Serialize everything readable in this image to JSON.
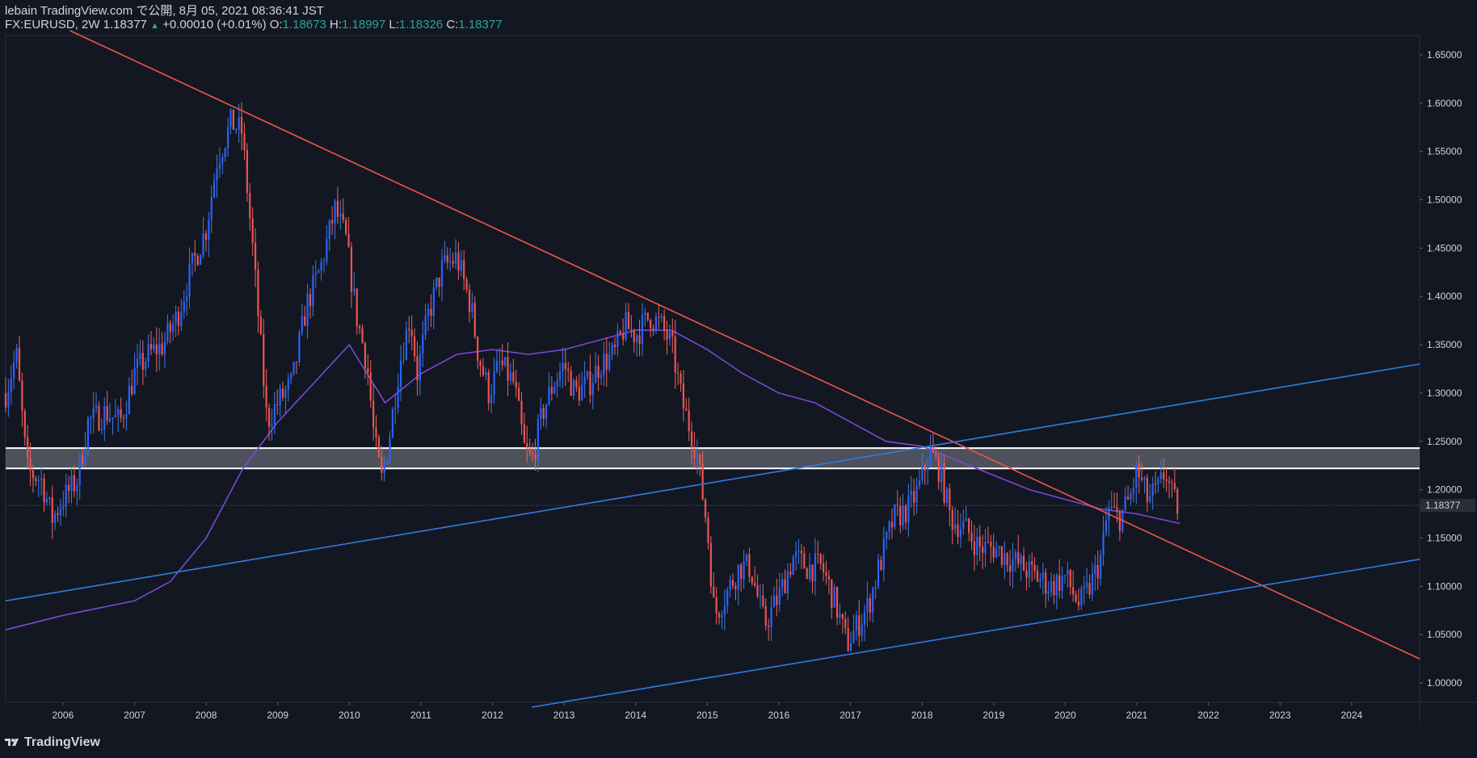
{
  "header": {
    "line1": "lebain TradingView.com で公開, 8月 05, 2021 08:36:41 JST",
    "symbol": "FX:EURUSD, 2W 1.18377",
    "change_arrow": "▲",
    "change": "+0.00010 (+0.01%)",
    "o_label": "O:",
    "o_value": "1.18673",
    "h_label": "H:",
    "h_value": "1.18997",
    "l_label": "L:",
    "l_value": "1.18326",
    "c_label": "C:",
    "c_value": "1.18377"
  },
  "brand": {
    "name": "TradingView",
    "icon": "tradingview-logo-icon"
  },
  "colors": {
    "background": "#131722",
    "up": "#2962ff",
    "down": "#ef5350",
    "upWick": "#3d7be0",
    "downWick": "#e8655f",
    "trend": "#f0554c",
    "channel": "#2f7ee0",
    "ma": "#7e46d6",
    "zone": "#ffffff"
  },
  "chart_data": {
    "type": "candlestick",
    "symbol": "FX:EURUSD",
    "interval": "2W",
    "last_price": 1.18377,
    "x_range": [
      2005.2,
      2024.95
    ],
    "ylim": [
      0.98,
      1.67
    ],
    "y_ticks": [
      "1.65000",
      "1.60000",
      "1.55000",
      "1.50000",
      "1.45000",
      "1.40000",
      "1.35000",
      "1.30000",
      "1.25000",
      "1.20000",
      "1.15000",
      "1.10000",
      "1.05000",
      "1.00000"
    ],
    "x_ticks": [
      "2006",
      "2007",
      "2008",
      "2009",
      "2010",
      "2011",
      "2012",
      "2013",
      "2014",
      "2015",
      "2016",
      "2017",
      "2018",
      "2019",
      "2020",
      "2021",
      "2022",
      "2023",
      "2024"
    ],
    "price_path": [
      [
        2005.2,
        1.3
      ],
      [
        2005.35,
        1.34
      ],
      [
        2005.5,
        1.22
      ],
      [
        2005.7,
        1.21
      ],
      [
        2005.85,
        1.17
      ],
      [
        2006.0,
        1.19
      ],
      [
        2006.2,
        1.21
      ],
      [
        2006.35,
        1.27
      ],
      [
        2006.6,
        1.28
      ],
      [
        2006.8,
        1.27
      ],
      [
        2007.0,
        1.32
      ],
      [
        2007.2,
        1.34
      ],
      [
        2007.4,
        1.35
      ],
      [
        2007.6,
        1.38
      ],
      [
        2007.8,
        1.43
      ],
      [
        2008.0,
        1.47
      ],
      [
        2008.15,
        1.54
      ],
      [
        2008.35,
        1.58
      ],
      [
        2008.5,
        1.57
      ],
      [
        2008.65,
        1.45
      ],
      [
        2008.85,
        1.27
      ],
      [
        2009.0,
        1.29
      ],
      [
        2009.2,
        1.31
      ],
      [
        2009.4,
        1.39
      ],
      [
        2009.6,
        1.43
      ],
      [
        2009.8,
        1.49
      ],
      [
        2009.95,
        1.46
      ],
      [
        2010.1,
        1.38
      ],
      [
        2010.25,
        1.33
      ],
      [
        2010.35,
        1.25
      ],
      [
        2010.45,
        1.21
      ],
      [
        2010.55,
        1.25
      ],
      [
        2010.7,
        1.33
      ],
      [
        2010.85,
        1.38
      ],
      [
        2010.95,
        1.32
      ],
      [
        2011.1,
        1.38
      ],
      [
        2011.3,
        1.43
      ],
      [
        2011.5,
        1.44
      ],
      [
        2011.7,
        1.39
      ],
      [
        2011.8,
        1.34
      ],
      [
        2011.95,
        1.3
      ],
      [
        2012.1,
        1.33
      ],
      [
        2012.3,
        1.31
      ],
      [
        2012.45,
        1.24
      ],
      [
        2012.55,
        1.23
      ],
      [
        2012.7,
        1.28
      ],
      [
        2012.85,
        1.31
      ],
      [
        2013.0,
        1.33
      ],
      [
        2013.15,
        1.3
      ],
      [
        2013.35,
        1.31
      ],
      [
        2013.5,
        1.33
      ],
      [
        2013.7,
        1.34
      ],
      [
        2013.85,
        1.37
      ],
      [
        2014.0,
        1.36
      ],
      [
        2014.2,
        1.38
      ],
      [
        2014.35,
        1.37
      ],
      [
        2014.5,
        1.35
      ],
      [
        2014.65,
        1.29
      ],
      [
        2014.85,
        1.24
      ],
      [
        2015.0,
        1.16
      ],
      [
        2015.1,
        1.07
      ],
      [
        2015.25,
        1.09
      ],
      [
        2015.45,
        1.12
      ],
      [
        2015.6,
        1.12
      ],
      [
        2015.8,
        1.06
      ],
      [
        2016.0,
        1.09
      ],
      [
        2016.2,
        1.13
      ],
      [
        2016.4,
        1.12
      ],
      [
        2016.6,
        1.12
      ],
      [
        2016.8,
        1.08
      ],
      [
        2016.95,
        1.04
      ],
      [
        2017.1,
        1.06
      ],
      [
        2017.25,
        1.08
      ],
      [
        2017.4,
        1.12
      ],
      [
        2017.6,
        1.17
      ],
      [
        2017.8,
        1.18
      ],
      [
        2017.95,
        1.2
      ],
      [
        2018.1,
        1.24
      ],
      [
        2018.25,
        1.22
      ],
      [
        2018.4,
        1.17
      ],
      [
        2018.6,
        1.16
      ],
      [
        2018.8,
        1.14
      ],
      [
        2019.0,
        1.14
      ],
      [
        2019.2,
        1.13
      ],
      [
        2019.4,
        1.12
      ],
      [
        2019.6,
        1.11
      ],
      [
        2019.8,
        1.1
      ],
      [
        2020.0,
        1.11
      ],
      [
        2020.2,
        1.08
      ],
      [
        2020.35,
        1.1
      ],
      [
        2020.5,
        1.13
      ],
      [
        2020.6,
        1.18
      ],
      [
        2020.75,
        1.17
      ],
      [
        2020.9,
        1.19
      ],
      [
        2021.0,
        1.22
      ],
      [
        2021.15,
        1.19
      ],
      [
        2021.3,
        1.2
      ],
      [
        2021.4,
        1.22
      ],
      [
        2021.5,
        1.19
      ],
      [
        2021.6,
        1.18
      ]
    ],
    "ma_path": [
      [
        2005.2,
        1.055
      ],
      [
        2006.0,
        1.07
      ],
      [
        2007.0,
        1.085
      ],
      [
        2007.5,
        1.105
      ],
      [
        2008.0,
        1.15
      ],
      [
        2008.5,
        1.22
      ],
      [
        2009.0,
        1.27
      ],
      [
        2009.5,
        1.31
      ],
      [
        2010.0,
        1.35
      ],
      [
        2010.5,
        1.29
      ],
      [
        2011.0,
        1.32
      ],
      [
        2011.5,
        1.34
      ],
      [
        2012.0,
        1.345
      ],
      [
        2012.5,
        1.34
      ],
      [
        2013.0,
        1.345
      ],
      [
        2013.5,
        1.355
      ],
      [
        2014.0,
        1.365
      ],
      [
        2014.5,
        1.365
      ],
      [
        2015.0,
        1.345
      ],
      [
        2015.5,
        1.32
      ],
      [
        2016.0,
        1.3
      ],
      [
        2016.5,
        1.29
      ],
      [
        2017.0,
        1.27
      ],
      [
        2017.5,
        1.25
      ],
      [
        2018.0,
        1.245
      ],
      [
        2018.5,
        1.23
      ],
      [
        2019.0,
        1.215
      ],
      [
        2019.5,
        1.2
      ],
      [
        2020.0,
        1.19
      ],
      [
        2020.5,
        1.18
      ],
      [
        2021.0,
        1.175
      ],
      [
        2021.6,
        1.165
      ]
    ],
    "trendlines": [
      {
        "name": "descending_resistance",
        "from": [
          2006.1,
          1.675
        ],
        "to": [
          2024.95,
          1.025
        ]
      },
      {
        "name": "channel_upper",
        "from": [
          2005.2,
          1.085
        ],
        "to": [
          2024.95,
          1.33
        ]
      },
      {
        "name": "channel_lower",
        "from": [
          2012.55,
          0.975
        ],
        "to": [
          2024.95,
          1.128
        ]
      }
    ],
    "zone": {
      "top": 1.243,
      "bottom": 1.222
    },
    "price_line": 1.18377,
    "grid": false
  }
}
